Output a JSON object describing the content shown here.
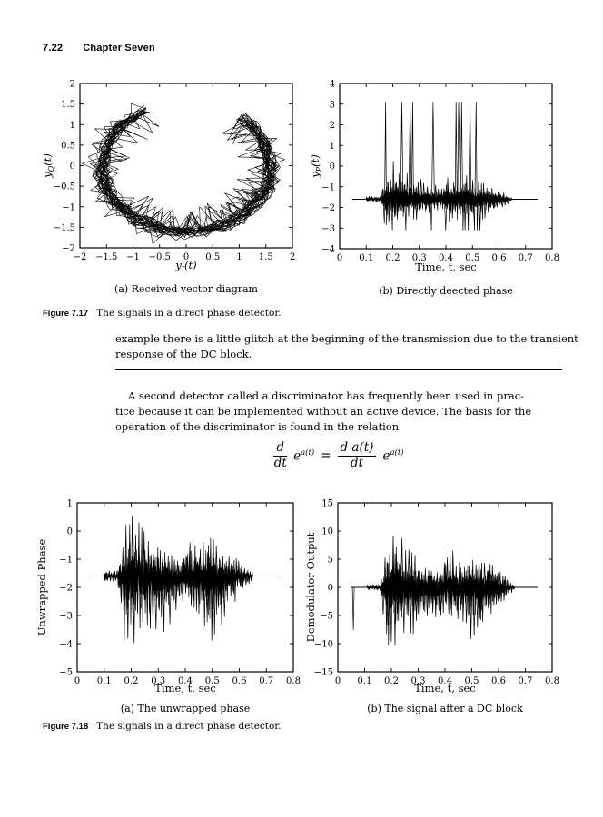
{
  "page": {
    "header_number": "7.22",
    "header_title": "Chapter Seven"
  },
  "figure_717": {
    "label": "Figure 7.17",
    "caption": "The signals in a direct phase detector.",
    "sub_a": "(a) Received vector diagram",
    "sub_b": "(b) Directly deected phase"
  },
  "figure_718": {
    "label": "Figure 7.18",
    "caption": "The signals in a direct phase detector.",
    "sub_a": "(a) The unwrapped phase",
    "sub_b": "(b) The signal after a DC block"
  },
  "body": {
    "paragraph1_lines": [
      "example there is a little glitch at the beginning of the transmission due to the transient",
      "response of the DC block."
    ],
    "paragraph2_lines": [
      "A second detector called a discriminator has frequently been used in prac-",
      "tice because it can be implemented without an active device. The basis for the",
      "operation of the discriminator is found in the relation"
    ]
  },
  "equation": {
    "num1": "d",
    "den1": "dt",
    "base1": "e",
    "exp1": "a(t)",
    "equals": "=",
    "num2": "d a(t)",
    "den2": "dt",
    "base2": "e",
    "exp2": "a(t)"
  },
  "chart_data": [
    {
      "id": "vector_diagram",
      "type": "line",
      "title": "(a) Received vector diagram",
      "xlabel": {
        "text": "y_{I}(t)",
        "italic": true
      },
      "ylabel": {
        "text": "y_{Q}(t)",
        "italic": true
      },
      "xlim": [
        -2,
        2
      ],
      "ylim": [
        -2,
        2
      ],
      "xticks": {
        "values": [
          -2,
          -1.5,
          -1,
          -0.5,
          0,
          0.5,
          1,
          1.5,
          2
        ],
        "labels": [
          "−2",
          "−1.5",
          "−1",
          "−0.5",
          "0",
          "0.5",
          "1",
          "1.5",
          "2"
        ]
      },
      "yticks": {
        "values": [
          -2,
          -1.5,
          -1,
          -0.5,
          0,
          0.5,
          1,
          1.5,
          2
        ],
        "labels": [
          "−2",
          "−1.5",
          "−1",
          "−0.5",
          "0",
          "0.5",
          "1",
          "1.5",
          "2"
        ]
      },
      "description": "Noisy horseshoe-shaped trajectory of radius about 1.6 centered at the origin, open at the top between the tips near (-0.8,1.5) and (1.3,1.2); densest along the bottom arc near y = -1.5.",
      "arc": {
        "radius": 1.57,
        "angle_start_deg": 118,
        "angle_end_deg": 410,
        "passes": 32,
        "radius_jitter": 0.13
      }
    },
    {
      "id": "detected_phase",
      "type": "line",
      "title": "(b) Directly deected phase",
      "xlabel": {
        "text": "Time, t, sec",
        "italic": false
      },
      "ylabel": {
        "text": "y_{P}(t)",
        "italic": true
      },
      "xlim": [
        0,
        0.8
      ],
      "ylim": [
        -4,
        4
      ],
      "xticks": {
        "values": [
          0,
          0.1,
          0.2,
          0.3,
          0.4,
          0.5,
          0.6,
          0.7,
          0.8
        ],
        "labels": [
          "0",
          "0.1",
          "0.2",
          "0.3",
          "0.4",
          "0.5",
          "0.6",
          "0.7",
          "0.8"
        ]
      },
      "yticks": {
        "values": [
          4,
          3,
          2,
          1,
          0,
          -1,
          -2,
          -3,
          -4
        ],
        "labels": [
          "4",
          "3",
          "2",
          "1",
          "0",
          "−1",
          "−2",
          "−3",
          "−4"
        ]
      },
      "description": "Speech-like phase signal resting at -1.6; active burst from about t=0.1 to 0.65 s with phase-wrap spikes clipping at +3.1 and -3.1 between roughly t=0.17 and 0.53 s.",
      "baseline": -1.6,
      "flat": [
        0.048,
        0.745
      ],
      "freq": 95,
      "envelope": {
        "t": [
          0.1,
          0.155,
          0.17,
          0.2,
          0.225,
          0.25,
          0.3,
          0.35,
          0.385,
          0.4,
          0.43,
          0.47,
          0.52,
          0.57,
          0.62,
          0.65
        ],
        "hi": [
          -1.45,
          -1.45,
          -0.3,
          0.4,
          0.1,
          -0.3,
          -0.6,
          -0.8,
          -1.0,
          -0.3,
          -0.5,
          -0.3,
          -0.7,
          -0.9,
          -1.3,
          -1.55
        ],
        "lo": [
          -1.75,
          -1.75,
          -3.0,
          -3.0,
          -2.9,
          -2.8,
          -2.6,
          -2.3,
          -2.1,
          -2.8,
          -2.7,
          -2.8,
          -2.7,
          -2.4,
          -2.0,
          -1.65
        ]
      },
      "wrap": {
        "level": 3.1,
        "clusters": [
          [
            0.165,
            0.305,
            0.45
          ],
          [
            0.34,
            0.352,
            0.4
          ],
          [
            0.395,
            0.408,
            0.5
          ],
          [
            0.435,
            0.53,
            0.4
          ]
        ]
      }
    },
    {
      "id": "unwrapped_phase",
      "type": "line",
      "title": "(a) The unwrapped phase",
      "xlabel": {
        "text": "Time, t, sec",
        "italic": false
      },
      "ylabel": {
        "text": "Unwrapped Phase",
        "italic": false
      },
      "xlim": [
        0,
        0.8
      ],
      "ylim": [
        -5,
        1
      ],
      "xticks": {
        "values": [
          0,
          0.1,
          0.2,
          0.3,
          0.4,
          0.5,
          0.6,
          0.7,
          0.8
        ],
        "labels": [
          "0",
          "0.1",
          "0.2",
          "0.3",
          "0.4",
          "0.5",
          "0.6",
          "0.7",
          "0.8"
        ]
      },
      "yticks": {
        "values": [
          1,
          0,
          -1,
          -2,
          -3,
          -4,
          -5
        ],
        "labels": [
          "1",
          "0",
          "−1",
          "−2",
          "−3",
          "−4",
          "−5"
        ]
      },
      "description": "Unwrapped phase resting at -1.6; burst from about t=0.1 to 0.65 s, peaking near +0.75 around t=0.21 and dipping to about -4.25 near t=0.18 and t=0.50.",
      "baseline": -1.6,
      "flat": [
        0.048,
        0.74
      ],
      "freq": 95,
      "envelope": {
        "t": [
          0.1,
          0.15,
          0.165,
          0.18,
          0.21,
          0.24,
          0.28,
          0.32,
          0.36,
          0.385,
          0.4,
          0.43,
          0.46,
          0.5,
          0.54,
          0.58,
          0.62,
          0.65
        ],
        "hi": [
          -1.4,
          -1.4,
          -0.3,
          0.3,
          0.75,
          0.3,
          -0.3,
          -0.6,
          -0.9,
          -1.0,
          -0.1,
          -0.1,
          -0.4,
          -0.1,
          -0.7,
          -0.9,
          -1.2,
          -1.5
        ],
        "lo": [
          -1.8,
          -1.8,
          -3.5,
          -4.25,
          -4.2,
          -3.6,
          -3.8,
          -3.6,
          -3.1,
          -2.6,
          -2.7,
          -3.0,
          -3.3,
          -4.25,
          -3.4,
          -2.6,
          -2.1,
          -1.7
        ]
      }
    },
    {
      "id": "demodulator_output",
      "type": "line",
      "title": "(b) The signal after a DC block",
      "xlabel": {
        "text": "Time, t, sec",
        "italic": false
      },
      "ylabel": {
        "text": "Demodulator Output",
        "italic": false
      },
      "xlim": [
        0,
        0.8
      ],
      "ylim": [
        -15,
        15
      ],
      "xticks": {
        "values": [
          0,
          0.1,
          0.2,
          0.3,
          0.4,
          0.5,
          0.6,
          0.7,
          0.8
        ],
        "labels": [
          "0",
          "0.1",
          "0.2",
          "0.3",
          "0.4",
          "0.5",
          "0.6",
          "0.7",
          "0.8"
        ]
      },
      "yticks": {
        "values": [
          15,
          10,
          5,
          0,
          -5,
          -10,
          -15
        ],
        "labels": [
          "15",
          "10",
          "5",
          "0",
          "−5",
          "−10",
          "−15"
        ]
      },
      "description": "Demodulated speech centered on 0 with an initial transient glitch to about -7.5 near t=0.06 s; burst from about t=0.11 to 0.66 s peaking near +10.3 around t=0.22 and -12 around t=0.19, second dip to -11.5 near t=0.51.",
      "baseline": 0,
      "flat": [
        0.048,
        0.745
      ],
      "freq": 95,
      "glitch": {
        "t": 0.058,
        "v": -7.5,
        "w": 0.007
      },
      "envelope": {
        "t": [
          0.11,
          0.16,
          0.175,
          0.19,
          0.22,
          0.26,
          0.3,
          0.34,
          0.38,
          0.405,
          0.44,
          0.48,
          0.51,
          0.55,
          0.59,
          0.63,
          0.66
        ],
        "hi": [
          0.5,
          0.6,
          5.0,
          9.5,
          10.3,
          8.0,
          5.0,
          4.0,
          3.5,
          7.0,
          6.5,
          6.0,
          7.0,
          5.0,
          4.0,
          2.0,
          0.3
        ],
        "lo": [
          -0.5,
          -0.6,
          -8.0,
          -12.0,
          -10.5,
          -9.0,
          -8.5,
          -6.5,
          -5.0,
          -6.0,
          -7.5,
          -7.0,
          -11.5,
          -7.0,
          -4.5,
          -2.0,
          -0.3
        ]
      }
    }
  ]
}
